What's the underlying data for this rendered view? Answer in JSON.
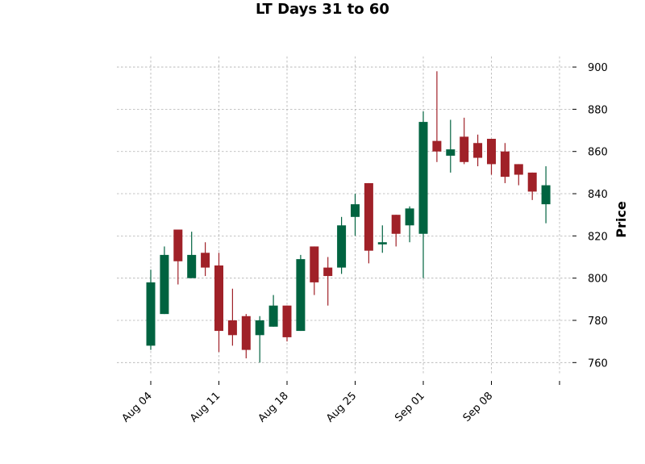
{
  "chart_data": {
    "type": "candlestick",
    "title": "LT Days 31 to 60",
    "ylabel": "Price",
    "ylim": [
      754,
      905
    ],
    "yticks": [
      760,
      780,
      800,
      820,
      840,
      860,
      880,
      900
    ],
    "xtick_labels": [
      "Aug 04",
      "Aug 11",
      "Aug 18",
      "Aug 25",
      "Sep 01",
      "Sep 08",
      ""
    ],
    "xtick_index": [
      0,
      5,
      10,
      15,
      20,
      25,
      30
    ],
    "grid": true,
    "colors": {
      "up": "#006340",
      "down": "#a02128"
    },
    "candles": [
      {
        "open": 768,
        "high": 804,
        "low": 766,
        "close": 798
      },
      {
        "open": 783,
        "high": 815,
        "low": 783,
        "close": 811
      },
      {
        "open": 823,
        "high": 823,
        "low": 797,
        "close": 808
      },
      {
        "open": 800,
        "high": 822,
        "low": 800,
        "close": 811
      },
      {
        "open": 812,
        "high": 817,
        "low": 801,
        "close": 805
      },
      {
        "open": 806,
        "high": 812,
        "low": 765,
        "close": 775
      },
      {
        "open": 780,
        "high": 795,
        "low": 768,
        "close": 773
      },
      {
        "open": 782,
        "high": 783,
        "low": 762,
        "close": 766
      },
      {
        "open": 773,
        "high": 782,
        "low": 760,
        "close": 780
      },
      {
        "open": 777,
        "high": 792,
        "low": 777,
        "close": 787
      },
      {
        "open": 787,
        "high": 787,
        "low": 770,
        "close": 772
      },
      {
        "open": 775,
        "high": 811,
        "low": 775,
        "close": 809
      },
      {
        "open": 815,
        "high": 815,
        "low": 792,
        "close": 798
      },
      {
        "open": 805,
        "high": 810,
        "low": 787,
        "close": 801
      },
      {
        "open": 805,
        "high": 829,
        "low": 802,
        "close": 825
      },
      {
        "open": 829,
        "high": 840,
        "low": 820,
        "close": 835
      },
      {
        "open": 845,
        "high": 845,
        "low": 807,
        "close": 813
      },
      {
        "open": 816,
        "high": 825,
        "low": 812,
        "close": 817
      },
      {
        "open": 830,
        "high": 830,
        "low": 815,
        "close": 821
      },
      {
        "open": 825,
        "high": 834,
        "low": 817,
        "close": 833
      },
      {
        "open": 821,
        "high": 879,
        "low": 800,
        "close": 874
      },
      {
        "open": 865,
        "high": 898,
        "low": 855,
        "close": 860
      },
      {
        "open": 858,
        "high": 875,
        "low": 850,
        "close": 861
      },
      {
        "open": 867,
        "high": 876,
        "low": 854,
        "close": 855
      },
      {
        "open": 864,
        "high": 868,
        "low": 853,
        "close": 857
      },
      {
        "open": 866,
        "high": 866,
        "low": 849,
        "close": 854
      },
      {
        "open": 860,
        "high": 864,
        "low": 845,
        "close": 848
      },
      {
        "open": 854,
        "high": 854,
        "low": 844,
        "close": 849
      },
      {
        "open": 850,
        "high": 850,
        "low": 837,
        "close": 841
      },
      {
        "open": 835,
        "high": 853,
        "low": 826,
        "close": 844
      }
    ]
  }
}
